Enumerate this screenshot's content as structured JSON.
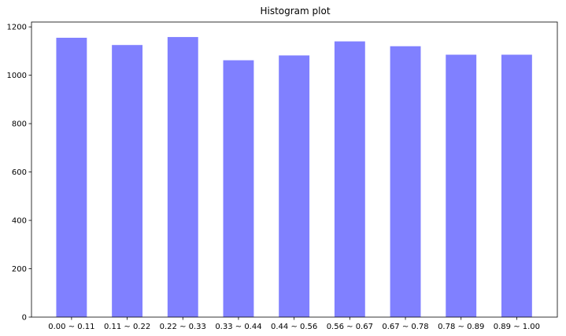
{
  "chart_data": {
    "type": "bar",
    "title": "Histogram plot",
    "xlabel": "",
    "ylabel": "",
    "categories": [
      "0.00 ~ 0.11",
      "0.11 ~ 0.22",
      "0.22 ~ 0.33",
      "0.33 ~ 0.44",
      "0.44 ~ 0.56",
      "0.56 ~ 0.67",
      "0.67 ~ 0.78",
      "0.78 ~ 0.89",
      "0.89 ~ 1.00"
    ],
    "values": [
      1155,
      1125,
      1158,
      1062,
      1082,
      1140,
      1120,
      1085,
      1085
    ],
    "ylim": [
      0,
      1220
    ],
    "yticks": [
      0,
      200,
      400,
      600,
      800,
      1000,
      1200
    ],
    "bar_color": "#8080ff",
    "grid": false,
    "legend": "none"
  }
}
